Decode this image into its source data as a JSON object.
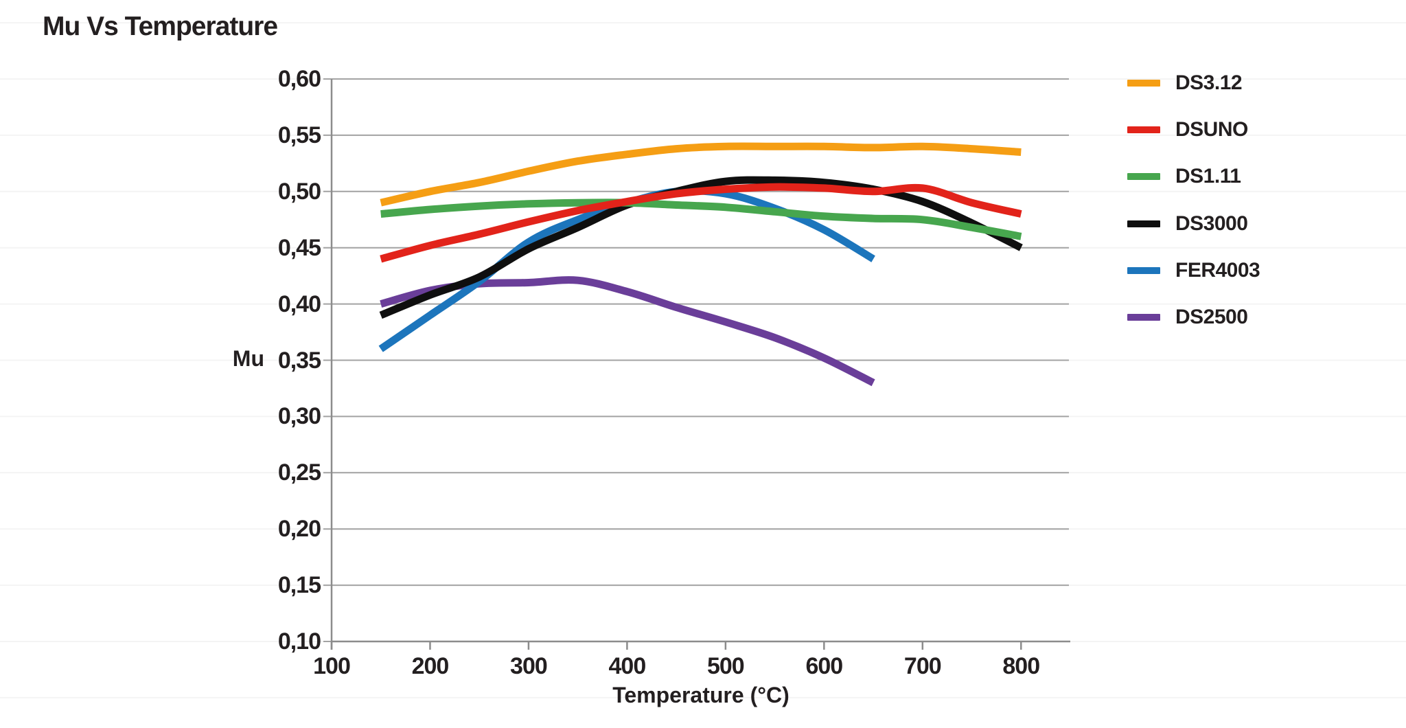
{
  "page": {
    "background": "#ffffff"
  },
  "chart_data": {
    "type": "line",
    "title": "Mu Vs Temperature",
    "xlabel": "Temperature (°C)",
    "ylabel": "Mu",
    "xlim": [
      100,
      850
    ],
    "ylim": [
      0.1,
      0.6
    ],
    "grid": "horizontal",
    "gridline_color": "#a3a3a3",
    "faint_gridline_color": "#f4f4f4",
    "axis_color": "#8c8c8c",
    "text_color": "#231f20",
    "legend_position": "right",
    "x_ticks": [
      {
        "value": 100,
        "label": "100"
      },
      {
        "value": 200,
        "label": "200"
      },
      {
        "value": 300,
        "label": "300"
      },
      {
        "value": 400,
        "label": "400"
      },
      {
        "value": 500,
        "label": "500"
      },
      {
        "value": 600,
        "label": "600"
      },
      {
        "value": 700,
        "label": "700"
      },
      {
        "value": 800,
        "label": "800"
      }
    ],
    "y_ticks": [
      {
        "value": 0.1,
        "label": "0,10"
      },
      {
        "value": 0.15,
        "label": "0,15"
      },
      {
        "value": 0.2,
        "label": "0,20"
      },
      {
        "value": 0.25,
        "label": "0,25"
      },
      {
        "value": 0.3,
        "label": "0,30"
      },
      {
        "value": 0.35,
        "label": "0,35"
      },
      {
        "value": 0.4,
        "label": "0,40"
      },
      {
        "value": 0.45,
        "label": "0,45"
      },
      {
        "value": 0.5,
        "label": "0,50"
      },
      {
        "value": 0.55,
        "label": "0,55"
      },
      {
        "value": 0.6,
        "label": "0,60"
      }
    ],
    "series": [
      {
        "name": "DS3.12",
        "color": "#F59E14",
        "points": [
          [
            150,
            0.49
          ],
          [
            200,
            0.5
          ],
          [
            250,
            0.508
          ],
          [
            300,
            0.518
          ],
          [
            350,
            0.527
          ],
          [
            400,
            0.533
          ],
          [
            450,
            0.538
          ],
          [
            500,
            0.54
          ],
          [
            550,
            0.54
          ],
          [
            600,
            0.54
          ],
          [
            650,
            0.539
          ],
          [
            700,
            0.54
          ],
          [
            750,
            0.538
          ],
          [
            800,
            0.535
          ]
        ]
      },
      {
        "name": "DSUNO",
        "color": "#E2231A",
        "points": [
          [
            150,
            0.44
          ],
          [
            200,
            0.452
          ],
          [
            250,
            0.462
          ],
          [
            300,
            0.473
          ],
          [
            350,
            0.483
          ],
          [
            400,
            0.491
          ],
          [
            450,
            0.498
          ],
          [
            500,
            0.502
          ],
          [
            550,
            0.504
          ],
          [
            600,
            0.503
          ],
          [
            650,
            0.5
          ],
          [
            700,
            0.503
          ],
          [
            750,
            0.49
          ],
          [
            800,
            0.48
          ]
        ]
      },
      {
        "name": "DS1.11",
        "color": "#47A64E",
        "points": [
          [
            150,
            0.48
          ],
          [
            200,
            0.484
          ],
          [
            250,
            0.487
          ],
          [
            300,
            0.489
          ],
          [
            350,
            0.49
          ],
          [
            400,
            0.49
          ],
          [
            450,
            0.488
          ],
          [
            500,
            0.486
          ],
          [
            550,
            0.482
          ],
          [
            600,
            0.478
          ],
          [
            650,
            0.476
          ],
          [
            700,
            0.475
          ],
          [
            750,
            0.468
          ],
          [
            800,
            0.46
          ]
        ]
      },
      {
        "name": "DS3000",
        "color": "#0f0f0f",
        "points": [
          [
            150,
            0.39
          ],
          [
            200,
            0.408
          ],
          [
            250,
            0.424
          ],
          [
            300,
            0.449
          ],
          [
            350,
            0.468
          ],
          [
            400,
            0.488
          ],
          [
            450,
            0.5
          ],
          [
            500,
            0.509
          ],
          [
            550,
            0.51
          ],
          [
            600,
            0.508
          ],
          [
            650,
            0.502
          ],
          [
            700,
            0.491
          ],
          [
            750,
            0.472
          ],
          [
            800,
            0.45
          ]
        ]
      },
      {
        "name": "FER4003",
        "color": "#1C75BC",
        "points": [
          [
            150,
            0.36
          ],
          [
            200,
            0.39
          ],
          [
            250,
            0.42
          ],
          [
            300,
            0.455
          ],
          [
            350,
            0.475
          ],
          [
            400,
            0.49
          ],
          [
            450,
            0.5
          ],
          [
            500,
            0.498
          ],
          [
            550,
            0.485
          ],
          [
            600,
            0.466
          ],
          [
            650,
            0.44
          ]
        ]
      },
      {
        "name": "DS2500",
        "color": "#6A3E99",
        "points": [
          [
            150,
            0.4
          ],
          [
            200,
            0.412
          ],
          [
            250,
            0.418
          ],
          [
            300,
            0.419
          ],
          [
            350,
            0.421
          ],
          [
            400,
            0.411
          ],
          [
            450,
            0.397
          ],
          [
            500,
            0.384
          ],
          [
            550,
            0.37
          ],
          [
            600,
            0.352
          ],
          [
            650,
            0.33
          ]
        ]
      }
    ],
    "draw_order": [
      "DS2500",
      "FER4003",
      "DS3000",
      "DS1.11",
      "DSUNO",
      "DS3.12"
    ]
  }
}
